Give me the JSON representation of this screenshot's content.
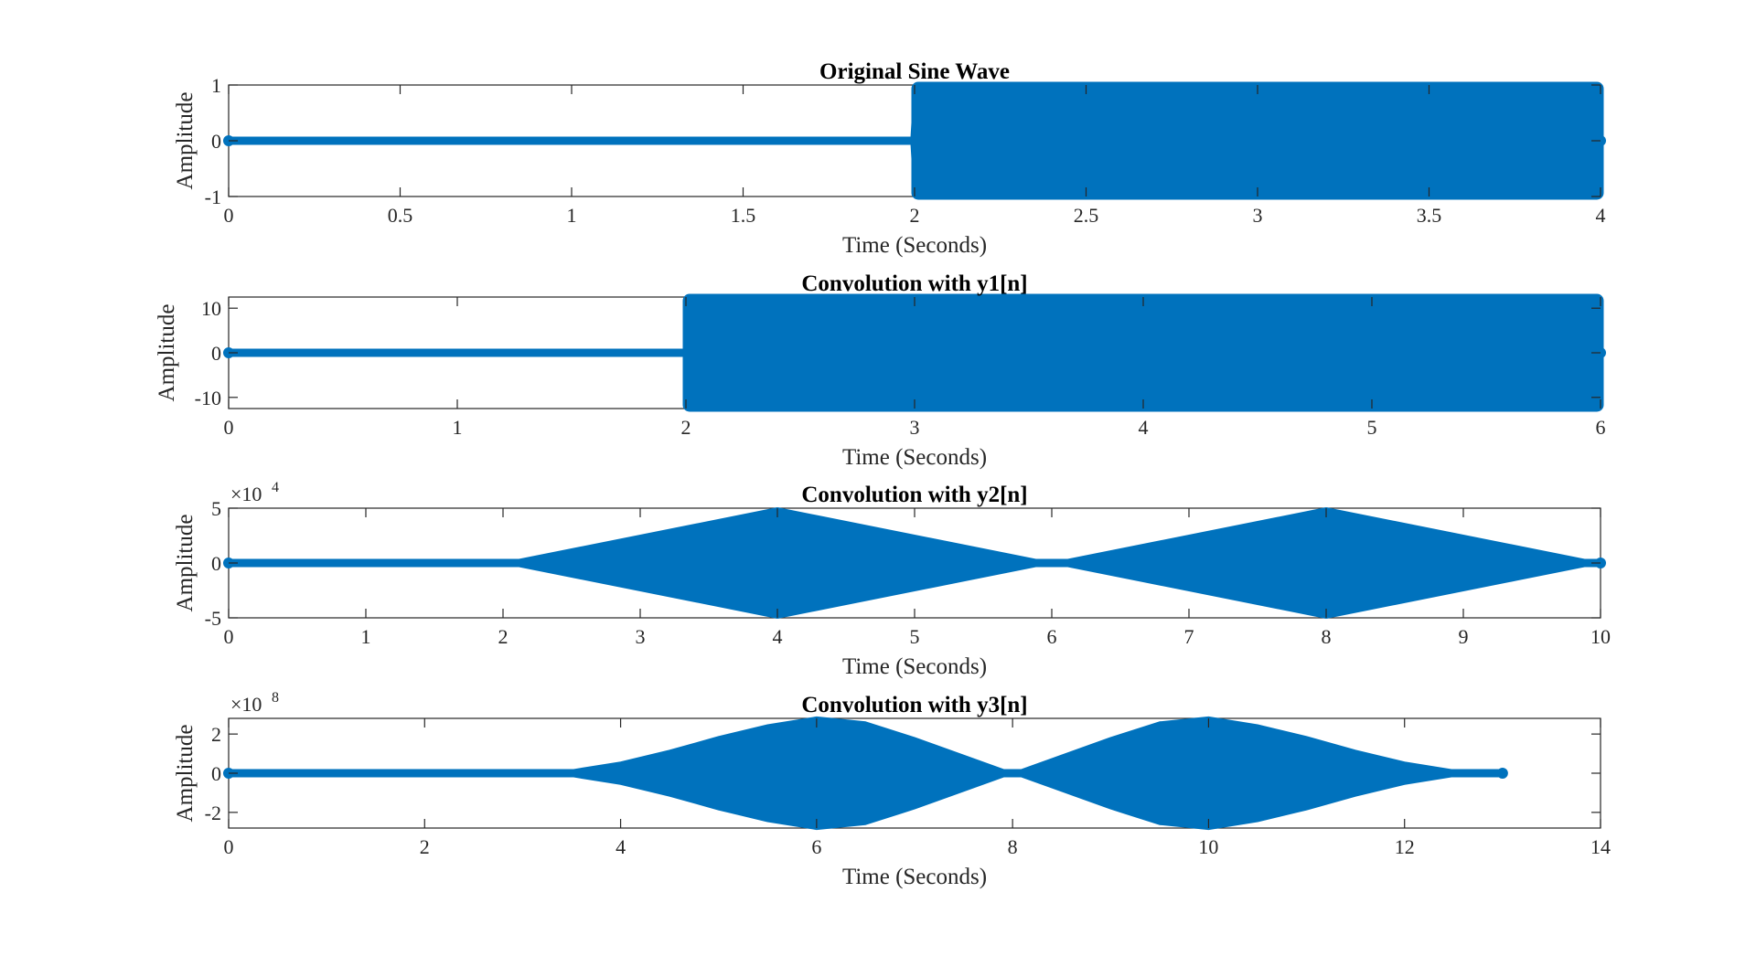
{
  "figure": {
    "background": "#ffffff"
  },
  "colors": {
    "series": "#0072BD",
    "axis": "#262626",
    "title": "#000000"
  },
  "chart_data": [
    {
      "type": "line",
      "title": "Original Sine Wave",
      "xlabel": "Time (Seconds)",
      "ylabel": "Amplitude",
      "xlim": [
        0,
        4
      ],
      "ylim": [
        -1,
        1
      ],
      "xticks": [
        0,
        0.5,
        1,
        1.5,
        2,
        2.5,
        3,
        3.5,
        4
      ],
      "xtick_labels": [
        "0",
        "0.5",
        "1",
        "1.5",
        "2",
        "2.5",
        "3",
        "3.5",
        "4"
      ],
      "yticks": [
        -1,
        0,
        1
      ],
      "ytick_labels": [
        "-1",
        "0",
        "1"
      ],
      "exponent": null,
      "grid": false,
      "marker": "circle",
      "envelope": [
        [
          0,
          0
        ],
        [
          1.99,
          0
        ],
        [
          2,
          1
        ],
        [
          4,
          1
        ]
      ]
    },
    {
      "type": "line",
      "title": "Convolution with y1[n]",
      "xlabel": "Time (Seconds)",
      "ylabel": "Amplitude",
      "xlim": [
        0,
        6
      ],
      "ylim": [
        -12.5,
        12.5
      ],
      "xticks": [
        0,
        1,
        2,
        3,
        4,
        5,
        6
      ],
      "xtick_labels": [
        "0",
        "1",
        "2",
        "3",
        "4",
        "5",
        "6"
      ],
      "yticks": [
        -10,
        0,
        10
      ],
      "ytick_labels": [
        "-10",
        "0",
        "10"
      ],
      "exponent": null,
      "grid": false,
      "marker": "circle",
      "envelope": [
        [
          0,
          0
        ],
        [
          1.99,
          0
        ],
        [
          2,
          12.5
        ],
        [
          6,
          12.5
        ]
      ]
    },
    {
      "type": "line",
      "title": "Convolution with y2[n]",
      "xlabel": "Time (Seconds)",
      "ylabel": "Amplitude",
      "xlim": [
        0,
        10
      ],
      "ylim": [
        -5,
        5
      ],
      "xticks": [
        0,
        1,
        2,
        3,
        4,
        5,
        6,
        7,
        8,
        9,
        10
      ],
      "xtick_labels": [
        "0",
        "1",
        "2",
        "3",
        "4",
        "5",
        "6",
        "7",
        "8",
        "9",
        "10"
      ],
      "yticks": [
        -5,
        0,
        5
      ],
      "ytick_labels": [
        "-5",
        "0",
        "5"
      ],
      "exponent": {
        "base": "×10",
        "power": "4"
      },
      "grid": false,
      "marker": "circle",
      "envelope": [
        [
          0,
          0
        ],
        [
          2,
          0
        ],
        [
          4,
          5
        ],
        [
          6,
          0
        ],
        [
          8,
          5
        ],
        [
          10,
          0
        ]
      ]
    },
    {
      "type": "line",
      "title": "Convolution with y3[n]",
      "xlabel": "Time (Seconds)",
      "ylabel": "Amplitude",
      "xlim": [
        0,
        14
      ],
      "ylim": [
        -2.8,
        2.8
      ],
      "xticks": [
        0,
        2,
        4,
        6,
        8,
        10,
        12,
        14
      ],
      "xtick_labels": [
        "0",
        "2",
        "4",
        "6",
        "8",
        "10",
        "12",
        "14"
      ],
      "yticks": [
        -2,
        0,
        2
      ],
      "ytick_labels": [
        "-2",
        "0",
        "2"
      ],
      "exponent": {
        "base": "×10",
        "power": "8"
      },
      "grid": false,
      "marker": "circle",
      "envelope": [
        [
          0,
          0
        ],
        [
          3,
          0
        ],
        [
          3.5,
          0.15
        ],
        [
          4,
          0.55
        ],
        [
          4.5,
          1.15
        ],
        [
          5,
          1.85
        ],
        [
          5.5,
          2.45
        ],
        [
          6,
          2.85
        ],
        [
          6.5,
          2.6
        ],
        [
          7,
          1.8
        ],
        [
          7.5,
          0.9
        ],
        [
          8,
          0
        ],
        [
          8.5,
          0.9
        ],
        [
          9,
          1.8
        ],
        [
          9.5,
          2.6
        ],
        [
          10,
          2.85
        ],
        [
          10.5,
          2.45
        ],
        [
          11,
          1.85
        ],
        [
          11.5,
          1.15
        ],
        [
          12,
          0.55
        ],
        [
          12.5,
          0.15
        ],
        [
          13,
          0
        ]
      ]
    }
  ]
}
